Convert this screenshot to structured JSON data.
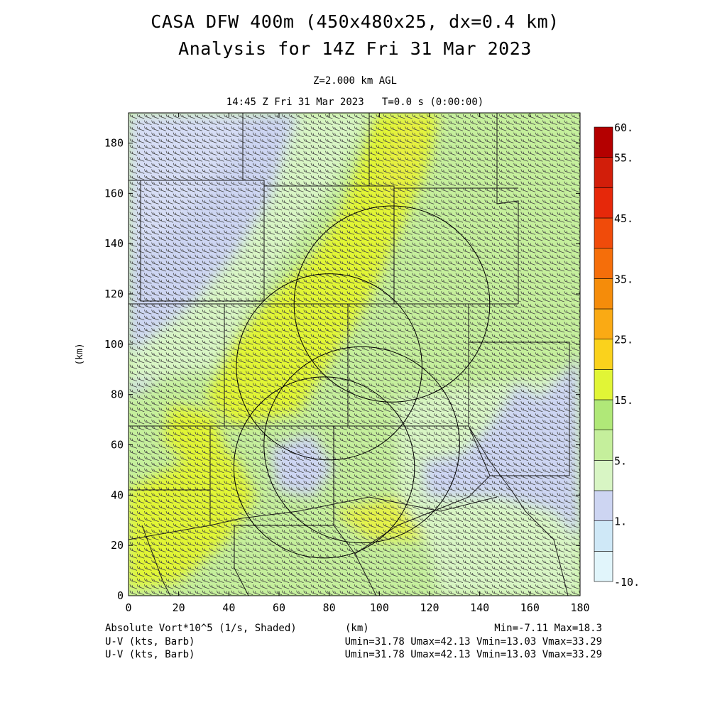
{
  "header": {
    "title_line1": "CASA DFW 400m (450x480x25, dx=0.4 km)",
    "title_line2": "Analysis for 14Z Fri 31 Mar 2023",
    "level": "Z=2.000 km AGL",
    "time": "14:45 Z Fri 31 Mar 2023   T=0.0 s (0:00:00)"
  },
  "footer": {
    "field_label": "Absolute Vort*10^5 (1/s, Shaded)",
    "xunit": "(km)",
    "minmax": "Min=-7.11 Max=18.3",
    "barb1": "U-V (kts, Barb)",
    "barb1_stats": "Umin=31.78 Umax=42.13 Vmin=13.03 Vmax=33.29",
    "barb2": "U-V (kts, Barb)",
    "barb2_stats": "Umin=31.78 Umax=42.13 Vmin=13.03 Vmax=33.29"
  },
  "chart_data": {
    "type": "heatmap",
    "xlabel": "(km)",
    "ylabel": "(km)",
    "xlim": [
      0,
      180
    ],
    "ylim": [
      0,
      192
    ],
    "x_ticks": [
      0,
      20,
      40,
      60,
      80,
      100,
      120,
      140,
      160,
      180
    ],
    "y_ticks": [
      0,
      20,
      40,
      60,
      80,
      100,
      120,
      140,
      160,
      180
    ],
    "x_tick_labels": [
      "0",
      "20",
      "40",
      "60",
      "80",
      "100",
      "120",
      "140",
      "160",
      "180"
    ],
    "y_tick_labels": [
      "0",
      "20",
      "40",
      "60",
      "80",
      "100",
      "120",
      "140",
      "160",
      "180"
    ],
    "field_min": -7.11,
    "field_max": 18.3,
    "colorbar": {
      "levels": [
        -10,
        -5,
        1,
        3,
        5,
        10,
        15,
        20,
        25,
        30,
        35,
        40,
        45,
        50,
        55,
        60
      ],
      "colors": [
        "#e1f5fb",
        "#cfe8f7",
        "#cdd5f2",
        "#d8f5c4",
        "#c5ef9c",
        "#b0e878",
        "#e1f536",
        "#fad21c",
        "#faaa14",
        "#f58c0a",
        "#f56e0a",
        "#f04b0a",
        "#e6280a",
        "#d21e0a",
        "#b40000"
      ],
      "labels": [
        "60.",
        "55.",
        "45.",
        "35.",
        "25.",
        "15.",
        "5.",
        "1.",
        "-10."
      ]
    },
    "radar_rings": [
      {
        "center": [
          78,
          51
        ],
        "radius": 36
      },
      {
        "center": [
          93,
          60
        ],
        "radius": 39
      },
      {
        "center": [
          80,
          91
        ],
        "radius": 37
      },
      {
        "center": [
          105,
          116
        ],
        "radius": 39
      }
    ],
    "wind": {
      "u_min": 31.78,
      "u_max": 42.13,
      "v_min": 13.03,
      "v_max": 33.29
    }
  }
}
